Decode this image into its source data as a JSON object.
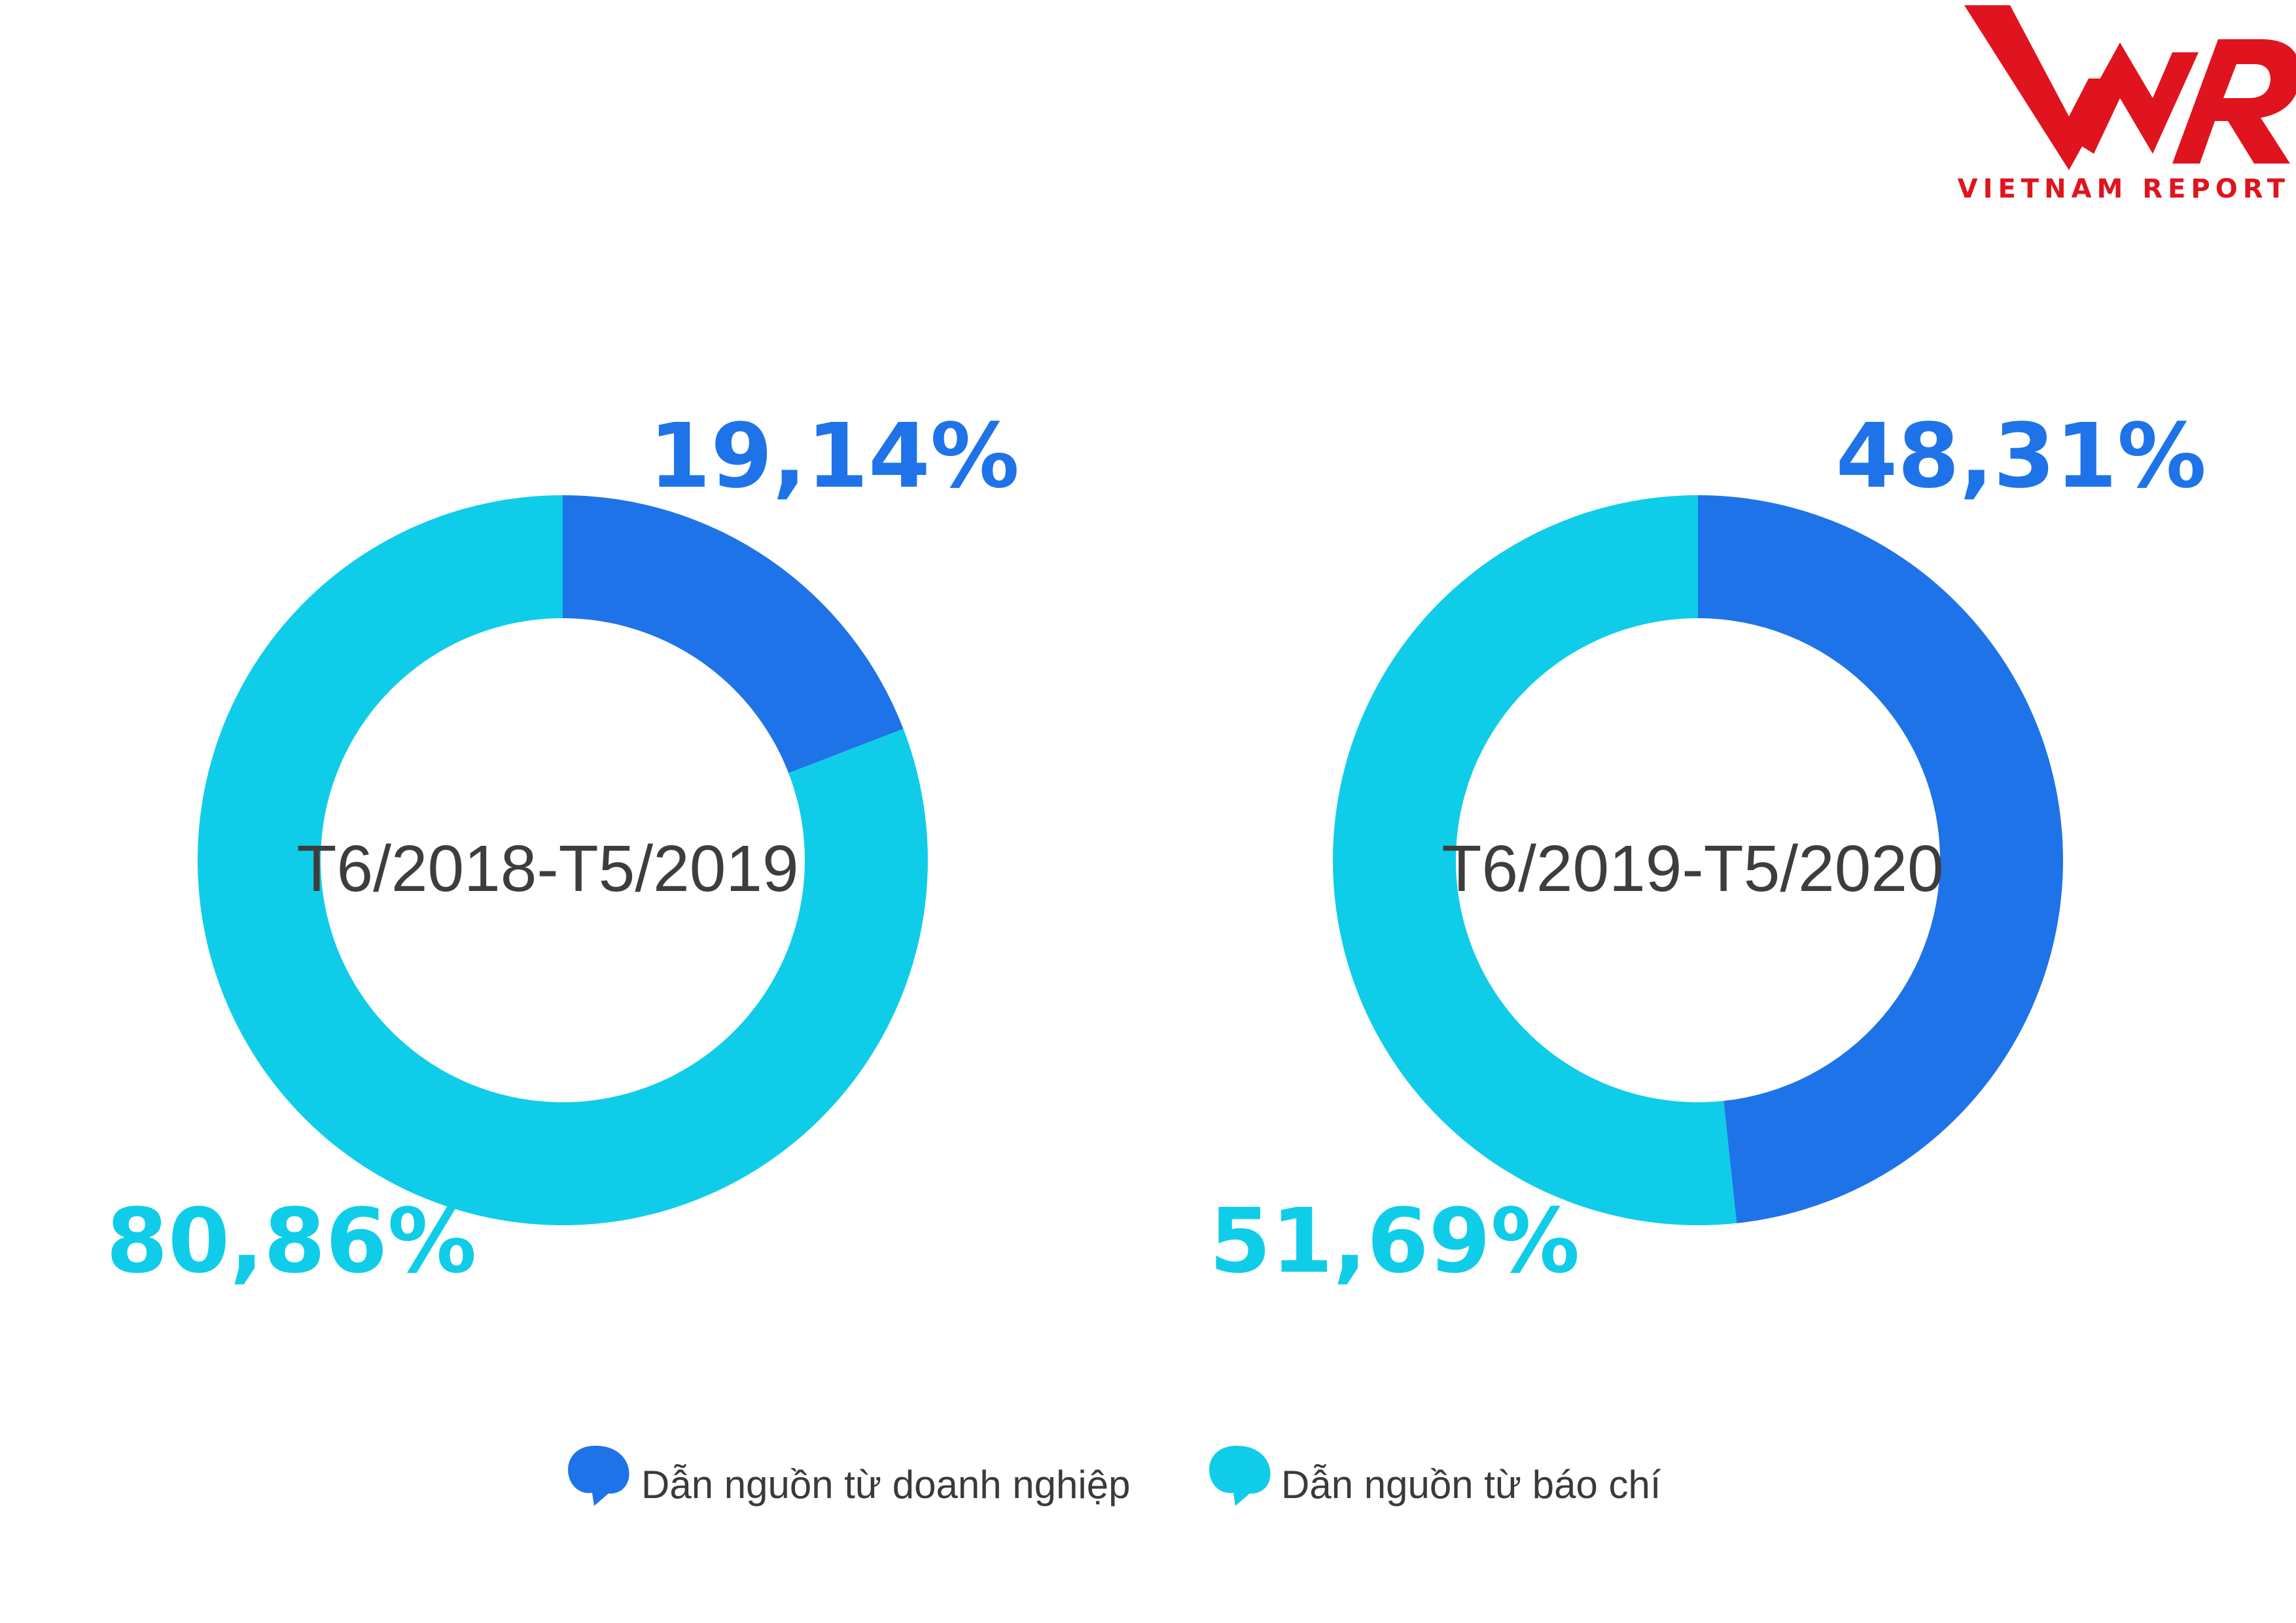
{
  "brand": {
    "logo_mark": "VNR",
    "logo_subtitle": "VIETNAM REPORT",
    "color": "#e0141e"
  },
  "legend": {
    "items": [
      {
        "label": "Dẫn nguồn từ doanh nghiệp",
        "color": "#1e73e8"
      },
      {
        "label": "Dẫn nguồn từ báo chí",
        "color": "#0fcde8"
      }
    ]
  },
  "chart_data": [
    {
      "type": "pie",
      "donut": true,
      "title": "T6/2018-T5/2019",
      "slices": [
        {
          "name": "Dẫn nguồn từ doanh nghiệp",
          "value": 19.14,
          "label": "19,14%",
          "color": "#1e73e8"
        },
        {
          "name": "Dẫn nguồn từ báo chí",
          "value": 80.86,
          "label": "80,86%",
          "color": "#0fcde8"
        }
      ]
    },
    {
      "type": "pie",
      "donut": true,
      "title": "T6/2019-T5/2020",
      "slices": [
        {
          "name": "Dẫn nguồn từ doanh nghiệp",
          "value": 48.31,
          "label": "48,31%",
          "color": "#1e73e8"
        },
        {
          "name": "Dẫn nguồn từ báo chí",
          "value": 51.69,
          "label": "51,69%",
          "color": "#0fcde8"
        }
      ]
    }
  ]
}
